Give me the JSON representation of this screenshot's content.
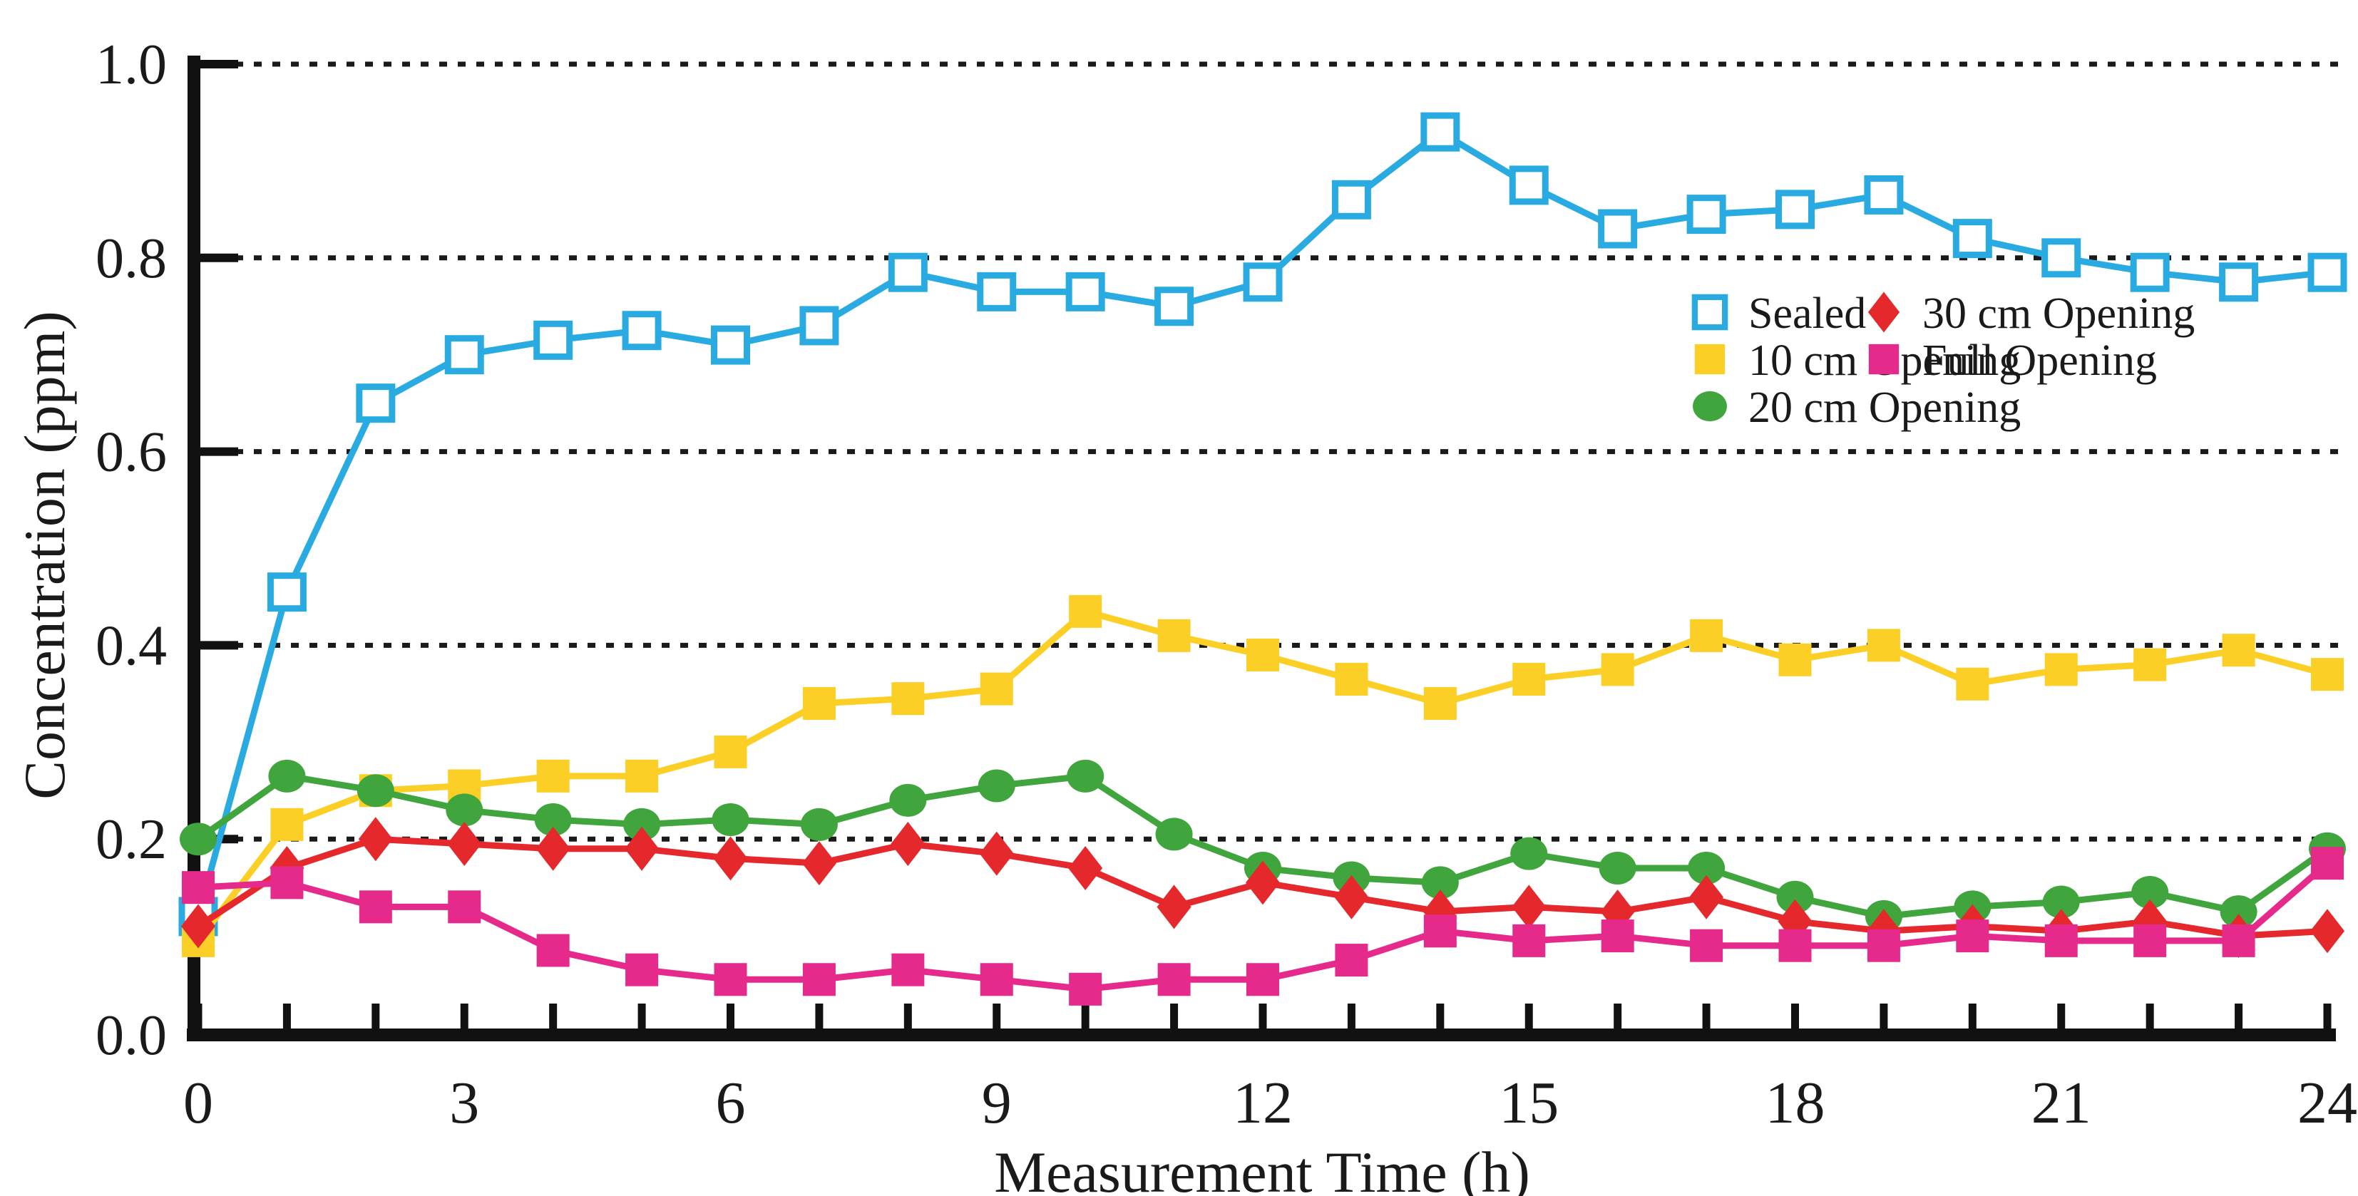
{
  "chart_data": {
    "type": "line",
    "title": "",
    "xlabel": "Measurement Time (h)",
    "ylabel": "Concentration (ppm)",
    "xlim": [
      0,
      24
    ],
    "ylim": [
      0.0,
      1.0
    ],
    "x_tick_labels": [
      "0",
      "3",
      "6",
      "9",
      "12",
      "15",
      "18",
      "21",
      "24"
    ],
    "x_tick_values": [
      0,
      3,
      6,
      9,
      12,
      15,
      18,
      21,
      24
    ],
    "x_minor_tick_every": 1,
    "y_tick_labels": [
      "0.0",
      "0.2",
      "0.4",
      "0.6",
      "0.8",
      "1.0"
    ],
    "y_tick_values": [
      0.0,
      0.2,
      0.4,
      0.6,
      0.8,
      1.0
    ],
    "grid": "horizontal dotted lines at 0.2 intervals",
    "legend_position": "upper right, two columns",
    "x": [
      0,
      1,
      2,
      3,
      4,
      5,
      6,
      7,
      8,
      9,
      10,
      11,
      12,
      13,
      14,
      15,
      16,
      17,
      18,
      19,
      20,
      21,
      22,
      23,
      24
    ],
    "series": [
      {
        "name": "Sealed",
        "marker": "open-square",
        "color": "#29ABE2",
        "values": [
          0.12,
          0.455,
          0.65,
          0.7,
          0.715,
          0.725,
          0.71,
          0.73,
          0.785,
          0.765,
          0.765,
          0.75,
          0.775,
          0.86,
          0.93,
          0.875,
          0.83,
          0.845,
          0.85,
          0.865,
          0.82,
          0.8,
          0.785,
          0.775,
          0.785
        ]
      },
      {
        "name": "10 cm Opening",
        "marker": "filled-square",
        "color": "#FBCF25",
        "values": [
          0.095,
          0.215,
          0.25,
          0.255,
          0.265,
          0.265,
          0.29,
          0.34,
          0.345,
          0.355,
          0.435,
          0.41,
          0.39,
          0.365,
          0.34,
          0.365,
          0.375,
          0.41,
          0.385,
          0.4,
          0.36,
          0.375,
          0.38,
          0.395,
          0.37
        ]
      },
      {
        "name": "20 cm Opening",
        "marker": "filled-circle",
        "color": "#3FA53C",
        "values": [
          0.2,
          0.265,
          0.25,
          0.23,
          0.22,
          0.215,
          0.22,
          0.215,
          0.24,
          0.255,
          0.265,
          0.205,
          0.17,
          0.16,
          0.155,
          0.185,
          0.17,
          0.17,
          0.14,
          0.12,
          0.13,
          0.135,
          0.145,
          0.125,
          0.19
        ]
      },
      {
        "name": "30 cm Opening",
        "marker": "filled-diamond",
        "color": "#E5282B",
        "values": [
          0.11,
          0.17,
          0.2,
          0.195,
          0.19,
          0.19,
          0.18,
          0.175,
          0.195,
          0.185,
          0.17,
          0.13,
          0.155,
          0.14,
          0.125,
          0.13,
          0.125,
          0.14,
          0.115,
          0.105,
          0.11,
          0.105,
          0.115,
          0.1,
          0.105
        ]
      },
      {
        "name": "Full Opening",
        "marker": "filled-square",
        "color": "#E62A8B",
        "values": [
          0.15,
          0.155,
          0.13,
          0.13,
          0.085,
          0.065,
          0.055,
          0.055,
          0.065,
          0.055,
          0.045,
          0.055,
          0.055,
          0.075,
          0.105,
          0.095,
          0.1,
          0.09,
          0.09,
          0.09,
          0.1,
          0.095,
          0.095,
          0.095,
          0.175
        ]
      }
    ]
  }
}
